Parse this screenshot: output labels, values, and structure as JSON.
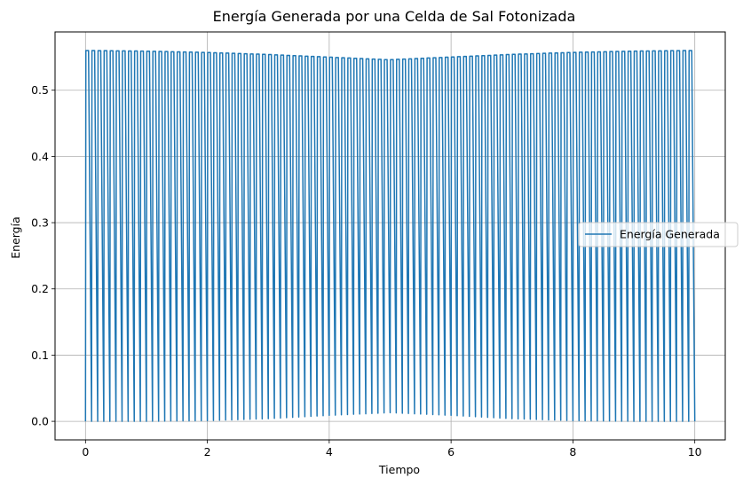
{
  "chart_data": {
    "type": "line",
    "title": "Energía Generada por una Celda de Sal Fotonizada",
    "xlabel": "Tiempo",
    "ylabel": "Energía",
    "xlim": [
      -0.5,
      10.5
    ],
    "ylim": [
      -0.028,
      0.588
    ],
    "xticks": [
      0,
      2,
      4,
      6,
      8,
      10
    ],
    "yticks": [
      0.0,
      0.1,
      0.2,
      0.3,
      0.4,
      0.5
    ],
    "grid": true,
    "legend": {
      "position": "center-right"
    },
    "series": [
      {
        "name": "Energía Generada",
        "color": "#1f77b4",
        "x_range": [
          0,
          10
        ],
        "cycles": 100,
        "peak_envelope": {
          "x": [
            0,
            1,
            2,
            3,
            4,
            5,
            6,
            7,
            8,
            9,
            10
          ],
          "y": [
            0.56,
            0.559,
            0.557,
            0.554,
            0.55,
            0.546,
            0.55,
            0.554,
            0.557,
            0.559,
            0.56
          ]
        },
        "trough_envelope": {
          "x": [
            0,
            1,
            2,
            3,
            4,
            5,
            6,
            7,
            8,
            9,
            10
          ],
          "y": [
            0.0,
            0.0,
            0.001,
            0.004,
            0.009,
            0.013,
            0.009,
            0.004,
            0.001,
            0.0,
            0.0
          ]
        }
      }
    ]
  }
}
